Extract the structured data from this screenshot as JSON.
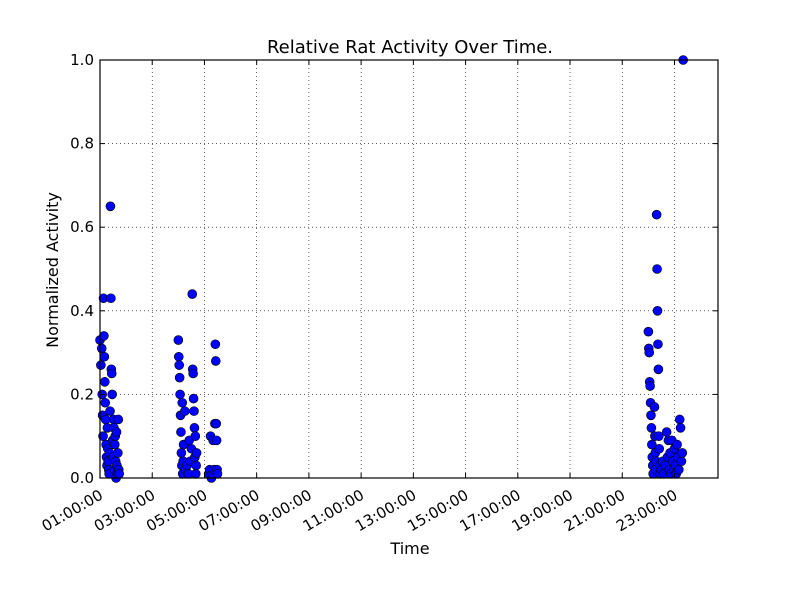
{
  "chart_data": {
    "type": "scatter",
    "title": "Relative Rat Activity Over Time.",
    "xlabel": "Time",
    "ylabel": "Normalized Activity",
    "ylim": [
      0,
      1.0
    ],
    "xlim": [
      "01:00:00",
      "24:40:00"
    ],
    "grid": true,
    "legend": "none",
    "x_tick_labels": [
      "01:00:00",
      "03:00:00",
      "05:00:00",
      "07:00:00",
      "09:00:00",
      "11:00:00",
      "13:00:00",
      "15:00:00",
      "17:00:00",
      "19:00:00",
      "21:00:00",
      "23:00:00"
    ],
    "y_tick_labels": [
      "0.0",
      "0.2",
      "0.4",
      "0.6",
      "0.8",
      "1.0"
    ],
    "marker_color": "#0000ff",
    "series": [
      {
        "points": [
          {
            "x": "01:00:00",
            "y": 0.33
          },
          {
            "x": "01:02:00",
            "y": 0.27
          },
          {
            "x": "01:04:00",
            "y": 0.31
          },
          {
            "x": "01:05:00",
            "y": 0.2
          },
          {
            "x": "01:06:00",
            "y": 0.15
          },
          {
            "x": "01:07:00",
            "y": 0.1
          },
          {
            "x": "01:08:00",
            "y": 0.43
          },
          {
            "x": "01:09:00",
            "y": 0.34
          },
          {
            "x": "01:10:00",
            "y": 0.29
          },
          {
            "x": "01:11:00",
            "y": 0.23
          },
          {
            "x": "01:12:00",
            "y": 0.18
          },
          {
            "x": "01:13:00",
            "y": 0.14
          },
          {
            "x": "01:14:00",
            "y": 0.08
          },
          {
            "x": "01:15:00",
            "y": 0.05
          },
          {
            "x": "01:16:00",
            "y": 0.03
          },
          {
            "x": "01:17:00",
            "y": 0.12
          },
          {
            "x": "01:18:00",
            "y": 0.07
          },
          {
            "x": "01:19:00",
            "y": 0.04
          },
          {
            "x": "01:20:00",
            "y": 0.02
          },
          {
            "x": "01:21:00",
            "y": 0.01
          },
          {
            "x": "01:22:00",
            "y": 0.06
          },
          {
            "x": "01:23:00",
            "y": 0.16
          },
          {
            "x": "01:24:00",
            "y": 0.65
          },
          {
            "x": "01:25:00",
            "y": 0.43
          },
          {
            "x": "01:26:00",
            "y": 0.26
          },
          {
            "x": "01:27:00",
            "y": 0.25
          },
          {
            "x": "01:28:00",
            "y": 0.2
          },
          {
            "x": "01:29:00",
            "y": 0.09
          },
          {
            "x": "01:30:00",
            "y": 0.05
          },
          {
            "x": "01:31:00",
            "y": 0.14
          },
          {
            "x": "01:32:00",
            "y": 0.12
          },
          {
            "x": "01:33:00",
            "y": 0.02
          },
          {
            "x": "01:34:00",
            "y": 0.08
          },
          {
            "x": "01:35:00",
            "y": 0.1
          },
          {
            "x": "01:36:00",
            "y": 0.04
          },
          {
            "x": "01:37:00",
            "y": 0.0
          },
          {
            "x": "01:38:00",
            "y": 0.11
          },
          {
            "x": "01:39:00",
            "y": 0.03
          },
          {
            "x": "01:40:00",
            "y": 0.01
          },
          {
            "x": "01:41:00",
            "y": 0.06
          },
          {
            "x": "01:42:00",
            "y": 0.14
          },
          {
            "x": "01:43:00",
            "y": 0.02
          },
          {
            "x": "01:44:00",
            "y": 0.01
          },
          {
            "x": "04:00:00",
            "y": 0.33
          },
          {
            "x": "04:01:00",
            "y": 0.29
          },
          {
            "x": "04:02:00",
            "y": 0.27
          },
          {
            "x": "04:03:00",
            "y": 0.24
          },
          {
            "x": "04:04:00",
            "y": 0.2
          },
          {
            "x": "04:05:00",
            "y": 0.15
          },
          {
            "x": "04:06:00",
            "y": 0.11
          },
          {
            "x": "04:07:00",
            "y": 0.06
          },
          {
            "x": "04:08:00",
            "y": 0.03
          },
          {
            "x": "04:09:00",
            "y": 0.18
          },
          {
            "x": "04:10:00",
            "y": 0.01
          },
          {
            "x": "04:11:00",
            "y": 0.04
          },
          {
            "x": "04:12:00",
            "y": 0.08
          },
          {
            "x": "04:15:00",
            "y": 0.16
          },
          {
            "x": "04:17:00",
            "y": 0.02
          },
          {
            "x": "04:20:00",
            "y": 0.03
          },
          {
            "x": "04:23:00",
            "y": 0.01
          },
          {
            "x": "04:25:00",
            "y": 0.09
          },
          {
            "x": "04:27:00",
            "y": 0.04
          },
          {
            "x": "04:30:00",
            "y": 0.07
          },
          {
            "x": "04:32:00",
            "y": 0.44
          },
          {
            "x": "04:33:00",
            "y": 0.26
          },
          {
            "x": "04:34:00",
            "y": 0.25
          },
          {
            "x": "04:35:00",
            "y": 0.19
          },
          {
            "x": "04:36:00",
            "y": 0.16
          },
          {
            "x": "04:37:00",
            "y": 0.12
          },
          {
            "x": "04:38:00",
            "y": 0.05
          },
          {
            "x": "04:39:00",
            "y": 0.1
          },
          {
            "x": "04:40:00",
            "y": 0.01
          },
          {
            "x": "04:41:00",
            "y": 0.03
          },
          {
            "x": "04:42:00",
            "y": 0.06
          },
          {
            "x": "05:10:00",
            "y": 0.01
          },
          {
            "x": "05:12:00",
            "y": 0.02
          },
          {
            "x": "05:14:00",
            "y": 0.1
          },
          {
            "x": "05:16:00",
            "y": 0.0
          },
          {
            "x": "05:18:00",
            "y": 0.01
          },
          {
            "x": "05:20:00",
            "y": 0.09
          },
          {
            "x": "05:22:00",
            "y": 0.02
          },
          {
            "x": "05:24:00",
            "y": 0.13
          },
          {
            "x": "05:25:00",
            "y": 0.32
          },
          {
            "x": "05:26:00",
            "y": 0.28
          },
          {
            "x": "05:27:00",
            "y": 0.13
          },
          {
            "x": "05:28:00",
            "y": 0.09
          },
          {
            "x": "05:29:00",
            "y": 0.02
          },
          {
            "x": "05:30:00",
            "y": 0.01
          },
          {
            "x": "22:00:00",
            "y": 0.35
          },
          {
            "x": "22:01:00",
            "y": 0.31
          },
          {
            "x": "22:02:00",
            "y": 0.3
          },
          {
            "x": "22:03:00",
            "y": 0.23
          },
          {
            "x": "22:04:00",
            "y": 0.22
          },
          {
            "x": "22:05:00",
            "y": 0.18
          },
          {
            "x": "22:06:00",
            "y": 0.15
          },
          {
            "x": "22:07:00",
            "y": 0.12
          },
          {
            "x": "22:08:00",
            "y": 0.08
          },
          {
            "x": "22:09:00",
            "y": 0.05
          },
          {
            "x": "22:10:00",
            "y": 0.03
          },
          {
            "x": "22:11:00",
            "y": 0.01
          },
          {
            "x": "22:14:00",
            "y": 0.17
          },
          {
            "x": "22:15:00",
            "y": 0.1
          },
          {
            "x": "22:16:00",
            "y": 0.06
          },
          {
            "x": "22:17:00",
            "y": 0.02
          },
          {
            "x": "22:18:00",
            "y": 0.04
          },
          {
            "x": "22:19:00",
            "y": 0.63
          },
          {
            "x": "22:20:00",
            "y": 0.5
          },
          {
            "x": "22:21:00",
            "y": 0.4
          },
          {
            "x": "22:22:00",
            "y": 0.32
          },
          {
            "x": "22:23:00",
            "y": 0.26
          },
          {
            "x": "22:24:00",
            "y": 0.1
          },
          {
            "x": "22:25:00",
            "y": 0.07
          },
          {
            "x": "22:26:00",
            "y": 0.03
          },
          {
            "x": "22:27:00",
            "y": 0.01
          },
          {
            "x": "22:30:00",
            "y": 0.02
          },
          {
            "x": "22:33:00",
            "y": 0.04
          },
          {
            "x": "22:36:00",
            "y": 0.01
          },
          {
            "x": "22:39:00",
            "y": 0.03
          },
          {
            "x": "22:42:00",
            "y": 0.11
          },
          {
            "x": "22:44:00",
            "y": 0.05
          },
          {
            "x": "22:46:00",
            "y": 0.09
          },
          {
            "x": "22:48:00",
            "y": 0.02
          },
          {
            "x": "22:50:00",
            "y": 0.06
          },
          {
            "x": "22:52:00",
            "y": 0.01
          },
          {
            "x": "22:54:00",
            "y": 0.09
          },
          {
            "x": "22:56:00",
            "y": 0.04
          },
          {
            "x": "22:58:00",
            "y": 0.02
          },
          {
            "x": "23:00:00",
            "y": 0.07
          },
          {
            "x": "23:02:00",
            "y": 0.03
          },
          {
            "x": "23:04:00",
            "y": 0.01
          },
          {
            "x": "23:06:00",
            "y": 0.08
          },
          {
            "x": "23:08:00",
            "y": 0.05
          },
          {
            "x": "23:10:00",
            "y": 0.02
          },
          {
            "x": "23:12:00",
            "y": 0.14
          },
          {
            "x": "23:14:00",
            "y": 0.12
          },
          {
            "x": "23:16:00",
            "y": 0.04
          },
          {
            "x": "23:18:00",
            "y": 0.06
          },
          {
            "x": "23:20:00",
            "y": 1.0
          }
        ]
      }
    ]
  }
}
